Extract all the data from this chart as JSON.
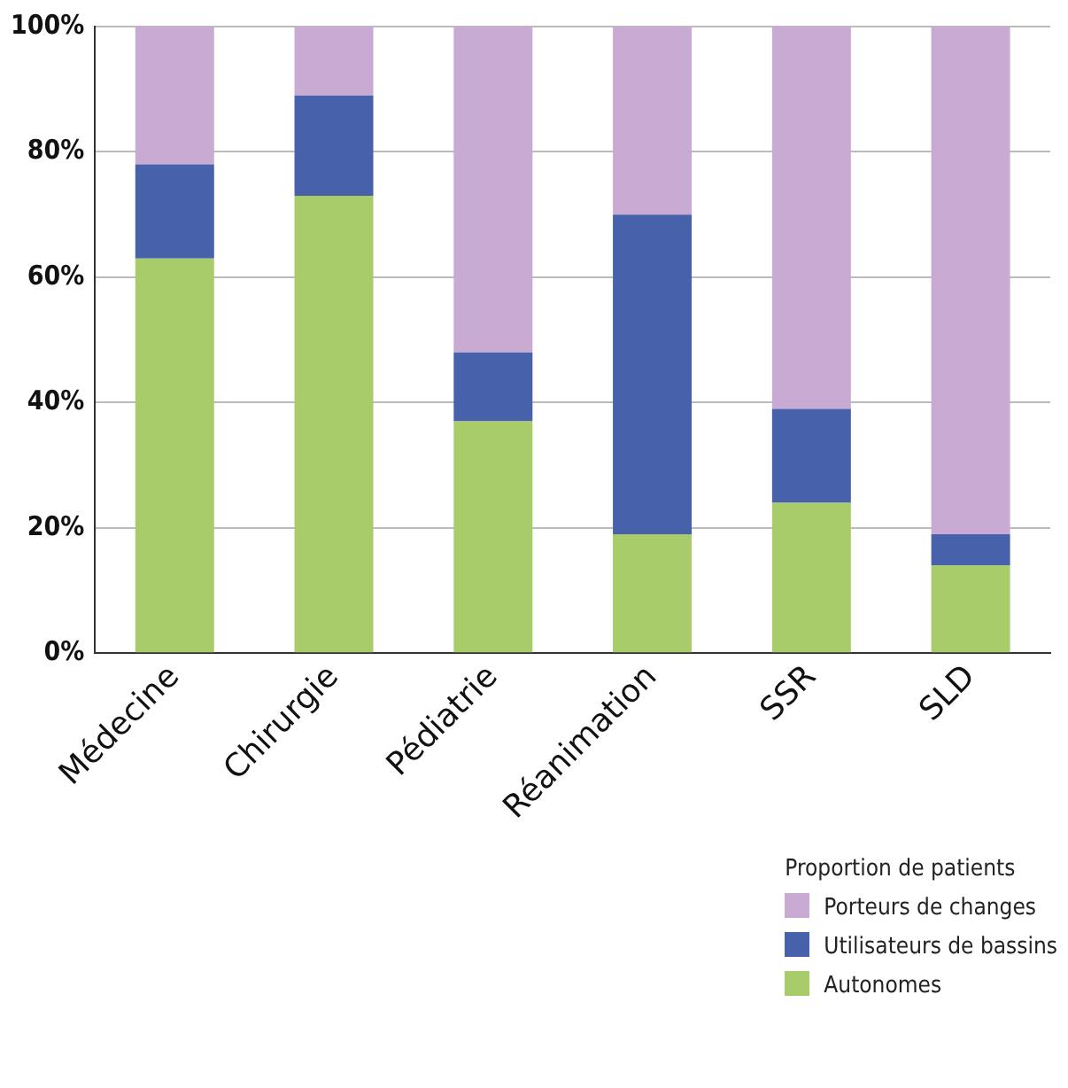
{
  "chart_data": {
    "type": "bar",
    "stacked": true,
    "categories": [
      "Médecine",
      "Chirurgie",
      "Pédiatrie",
      "Réanimation",
      "SSR",
      "SLD"
    ],
    "series": [
      {
        "name": "Autonomes",
        "color": "#a8cc6a",
        "values": [
          63,
          73,
          37,
          19,
          24,
          14
        ]
      },
      {
        "name": "Utilisateurs de bassins",
        "color": "#4761aa",
        "values": [
          15,
          16,
          11,
          51,
          15,
          5
        ]
      },
      {
        "name": "Porteurs de changes",
        "color": "#c9aad2",
        "values": [
          22,
          11,
          52,
          30,
          61,
          81
        ]
      }
    ],
    "ylim": [
      0,
      100
    ],
    "yticks": [
      {
        "value": 0,
        "label": "0%"
      },
      {
        "value": 20,
        "label": "20%"
      },
      {
        "value": 40,
        "label": "40%"
      },
      {
        "value": 60,
        "label": "60%"
      },
      {
        "value": 80,
        "label": "80%"
      },
      {
        "value": 100,
        "label": "100%"
      }
    ],
    "grid": "y",
    "legend": "bottom right",
    "legend_title": "Proportion de patients"
  }
}
